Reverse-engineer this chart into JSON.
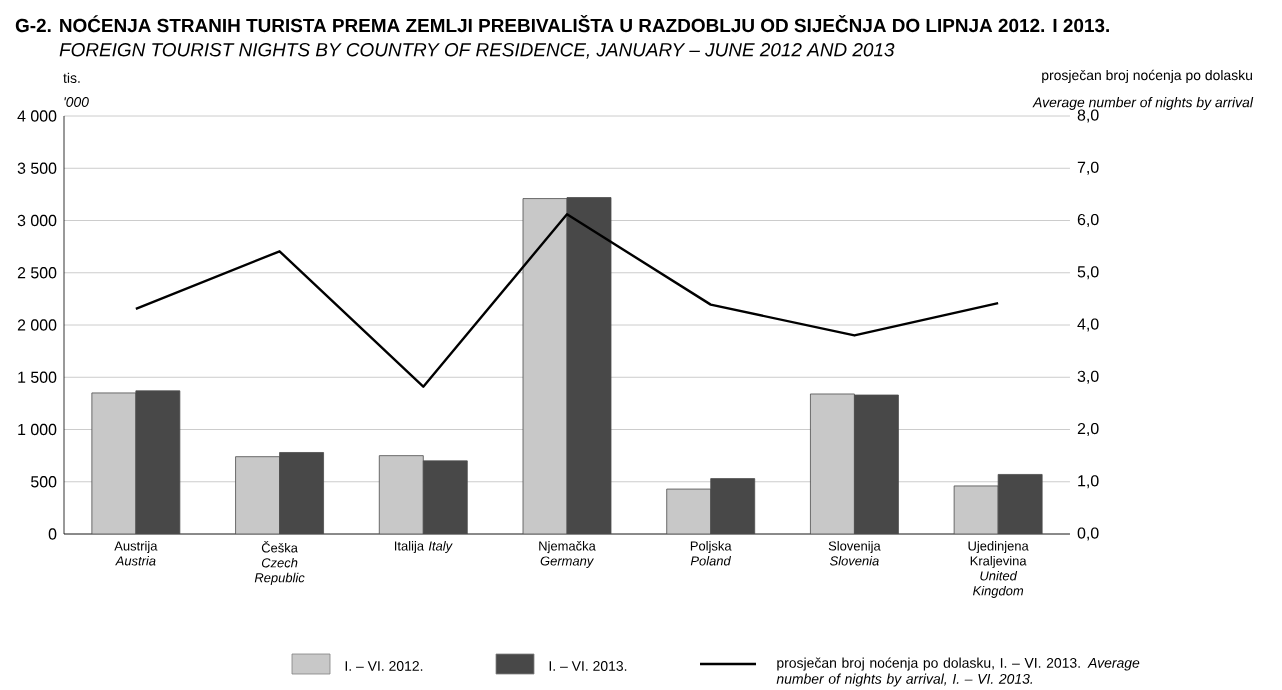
{
  "chart_data": {
    "type": "bar",
    "title": "G-2. NOĆENJA STRANIH TURISTA PREMA ZEMLJI PREBIVALIŠTA U RAZDOBLJU OD SIJEČNJA DO LIPNJA 2012. I 2013.",
    "subtitle": "FOREIGN TOURIST NIGHTS BY COUNTRY OF RESIDENCE, JANUARY – JUNE 2012 AND 2013",
    "ylabel": "tis.",
    "y2label": "prosječan broj noćenja po dolasku",
    "annotations": [
      "'000",
      "Average number of nights by arrival"
    ],
    "categories": [
      "Austrija *Austria*",
      "Češka *Czech Republic*",
      "Italija *Italy*",
      "Njemačka *Germany*",
      "Poljska *Poland*",
      "Slovenija *Slovenia*",
      "Ujedinjena Kraljevina *United Kingdom*"
    ],
    "series": [
      {
        "name": "I. – VI. 2012.",
        "type": "bar",
        "color": "#c8c8c8",
        "values": [
          1350,
          740,
          750,
          3210,
          430,
          1340,
          460
        ]
      },
      {
        "name": "I. – VI. 2013.",
        "type": "bar",
        "color": "#484848",
        "values": [
          1370,
          780,
          700,
          3220,
          530,
          1330,
          570
        ]
      },
      {
        "name": "prosječan broj noćenja po dolasku, I. – VI. 2013. *Average number of nights by arrival, I. – VI. 2013.*",
        "type": "line",
        "axis": "y2",
        "color": "#000000",
        "values": [
          4.31,
          5.41,
          2.82,
          6.12,
          4.39,
          3.8,
          4.42
        ]
      }
    ],
    "ylim": [
      0,
      4000
    ],
    "yticks": [
      {
        "value": 0,
        "label": "0"
      },
      {
        "value": 500,
        "label": "500"
      },
      {
        "value": 1000,
        "label": "1 000"
      },
      {
        "value": 1500,
        "label": "1 500"
      },
      {
        "value": 2000,
        "label": "2 000"
      },
      {
        "value": 2500,
        "label": "2 500"
      },
      {
        "value": 3000,
        "label": "3 000"
      },
      {
        "value": 3500,
        "label": "3 500"
      },
      {
        "value": 4000,
        "label": "4 000"
      }
    ],
    "y2lim": [
      0,
      8
    ],
    "y2ticks": [
      {
        "value": 0,
        "label": "0,0"
      },
      {
        "value": 1,
        "label": "1,0"
      },
      {
        "value": 2,
        "label": "2,0"
      },
      {
        "value": 3,
        "label": "3,0"
      },
      {
        "value": 4,
        "label": "4,0"
      },
      {
        "value": 5,
        "label": "5,0"
      },
      {
        "value": 6,
        "label": "6,0"
      },
      {
        "value": 7,
        "label": "7,0"
      },
      {
        "value": 8,
        "label": "8,0"
      }
    ],
    "grid": "y",
    "legend": "bottom",
    "marker": "none"
  }
}
